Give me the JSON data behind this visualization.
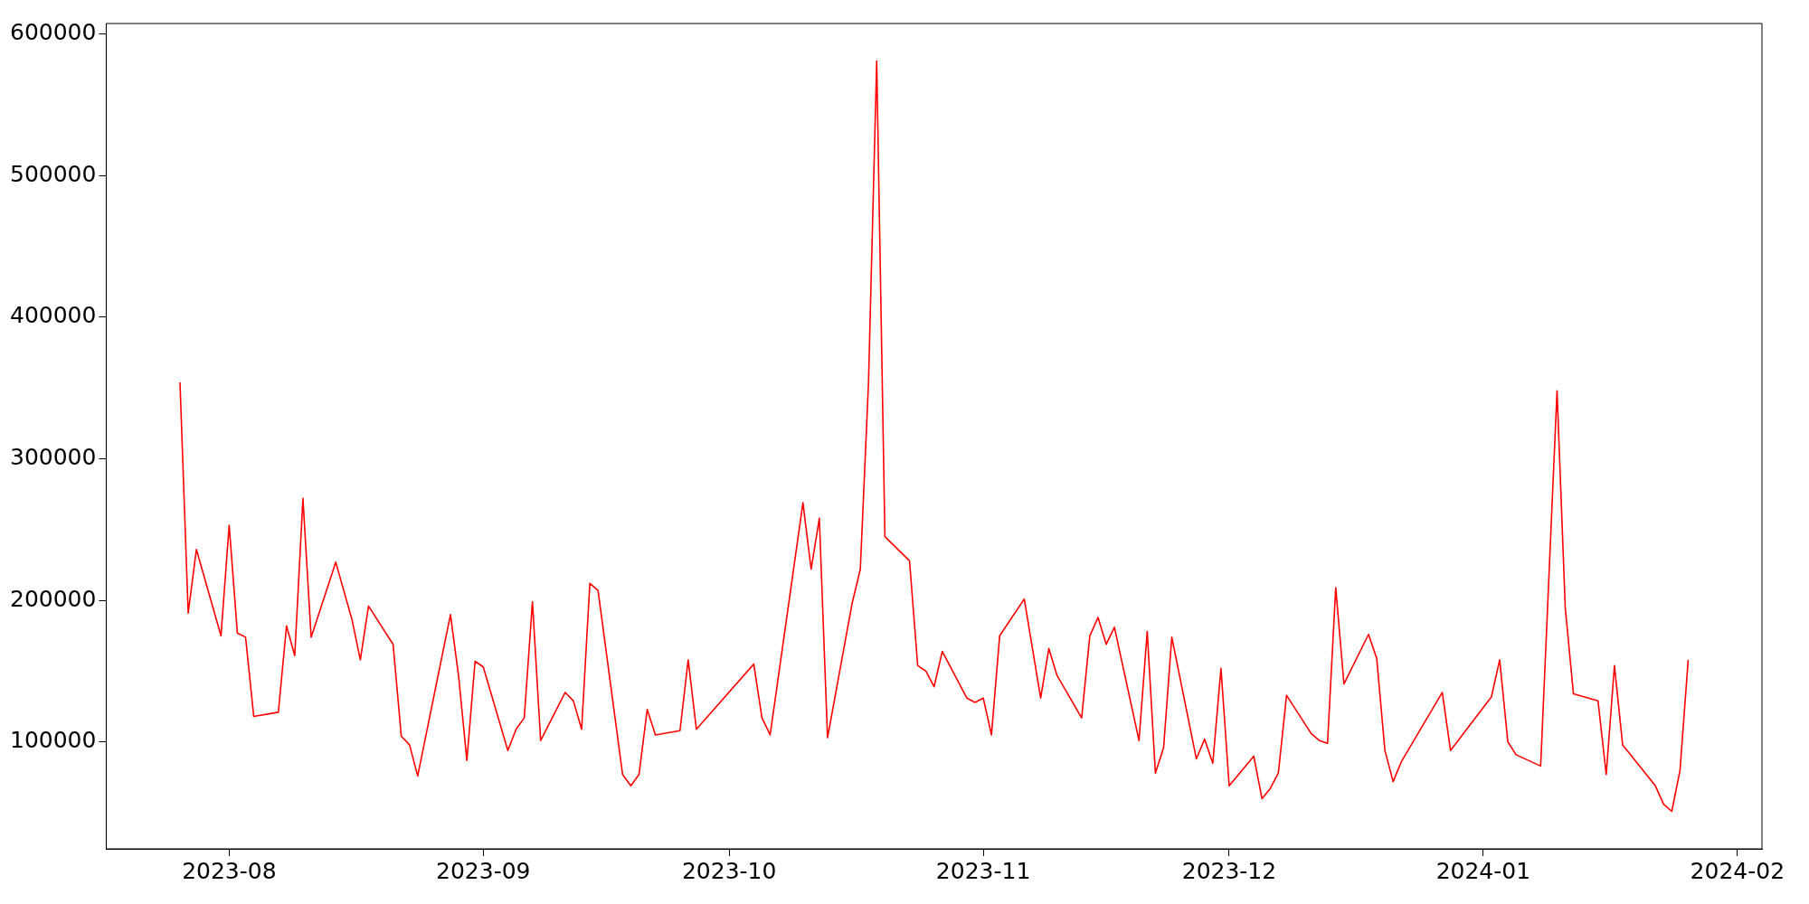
{
  "chart_data": {
    "type": "line",
    "x": [
      "2023-07-26",
      "2023-07-27",
      "2023-07-28",
      "2023-07-31",
      "2023-08-01",
      "2023-08-02",
      "2023-08-03",
      "2023-08-04",
      "2023-08-07",
      "2023-08-08",
      "2023-08-09",
      "2023-08-10",
      "2023-08-11",
      "2023-08-14",
      "2023-08-16",
      "2023-08-17",
      "2023-08-18",
      "2023-08-21",
      "2023-08-22",
      "2023-08-23",
      "2023-08-24",
      "2023-08-28",
      "2023-08-29",
      "2023-08-30",
      "2023-08-31",
      "2023-09-01",
      "2023-09-04",
      "2023-09-05",
      "2023-09-06",
      "2023-09-07",
      "2023-09-08",
      "2023-09-11",
      "2023-09-12",
      "2023-09-13",
      "2023-09-14",
      "2023-09-15",
      "2023-09-18",
      "2023-09-19",
      "2023-09-20",
      "2023-09-21",
      "2023-09-22",
      "2023-09-25",
      "2023-09-26",
      "2023-09-27",
      "2023-10-04",
      "2023-10-05",
      "2023-10-06",
      "2023-10-10",
      "2023-10-11",
      "2023-10-12",
      "2023-10-13",
      "2023-10-16",
      "2023-10-17",
      "2023-10-18",
      "2023-10-19",
      "2023-10-20",
      "2023-10-23",
      "2023-10-24",
      "2023-10-25",
      "2023-10-26",
      "2023-10-27",
      "2023-10-30",
      "2023-10-31",
      "2023-11-01",
      "2023-11-02",
      "2023-11-03",
      "2023-11-06",
      "2023-11-08",
      "2023-11-09",
      "2023-11-10",
      "2023-11-13",
      "2023-11-14",
      "2023-11-15",
      "2023-11-16",
      "2023-11-17",
      "2023-11-20",
      "2023-11-21",
      "2023-11-22",
      "2023-11-23",
      "2023-11-24",
      "2023-11-27",
      "2023-11-28",
      "2023-11-29",
      "2023-11-30",
      "2023-12-01",
      "2023-12-04",
      "2023-12-05",
      "2023-12-06",
      "2023-12-07",
      "2023-12-08",
      "2023-12-11",
      "2023-12-12",
      "2023-12-13",
      "2023-12-14",
      "2023-12-15",
      "2023-12-18",
      "2023-12-19",
      "2023-12-20",
      "2023-12-21",
      "2023-12-22",
      "2023-12-27",
      "2023-12-28",
      "2024-01-02",
      "2024-01-03",
      "2024-01-04",
      "2024-01-05",
      "2024-01-08",
      "2024-01-10",
      "2024-01-11",
      "2024-01-12",
      "2024-01-15",
      "2024-01-16",
      "2024-01-17",
      "2024-01-18",
      "2024-01-22",
      "2024-01-23",
      "2024-01-24",
      "2024-01-25",
      "2024-01-26"
    ],
    "series": [
      {
        "color": "#ff0000",
        "values": [
          354000,
          191000,
          236000,
          175000,
          253000,
          177000,
          174000,
          118000,
          121000,
          182000,
          161000,
          272000,
          174000,
          227000,
          186000,
          158000,
          196000,
          169000,
          104000,
          98000,
          76000,
          190000,
          146000,
          87000,
          157000,
          153000,
          94000,
          109000,
          117000,
          199000,
          101000,
          135000,
          129000,
          109000,
          212000,
          207000,
          77000,
          69000,
          77000,
          123000,
          105000,
          108000,
          158000,
          109000,
          155000,
          117000,
          105000,
          269000,
          222000,
          258000,
          103000,
          198000,
          222000,
          354000,
          581000,
          245000,
          228000,
          154000,
          150000,
          139000,
          164000,
          131000,
          128000,
          131000,
          105000,
          175000,
          201000,
          131000,
          166000,
          147000,
          117000,
          175000,
          188000,
          169000,
          181000,
          101000,
          178000,
          78000,
          96000,
          174000,
          88000,
          102000,
          85000,
          152000,
          69000,
          90000,
          60000,
          67000,
          78000,
          133000,
          106000,
          101000,
          99000,
          209000,
          141000,
          176000,
          159000,
          94000,
          72000,
          86000,
          135000,
          94000,
          132000,
          158000,
          100000,
          91000,
          83000,
          348000,
          195000,
          134000,
          129000,
          77000,
          154000,
          98000,
          69000,
          56000,
          51000,
          80000,
          158000
        ]
      }
    ],
    "xlim": [
      "2023-07-17",
      "2024-02-04"
    ],
    "xticks": [
      "2023-08",
      "2023-09",
      "2023-10",
      "2023-11",
      "2023-12",
      "2024-01",
      "2024-02"
    ],
    "ylim": [
      24500,
      607500
    ],
    "yticks": [
      100000,
      200000,
      300000,
      400000,
      500000,
      600000
    ],
    "grid": false,
    "legend": false
  }
}
